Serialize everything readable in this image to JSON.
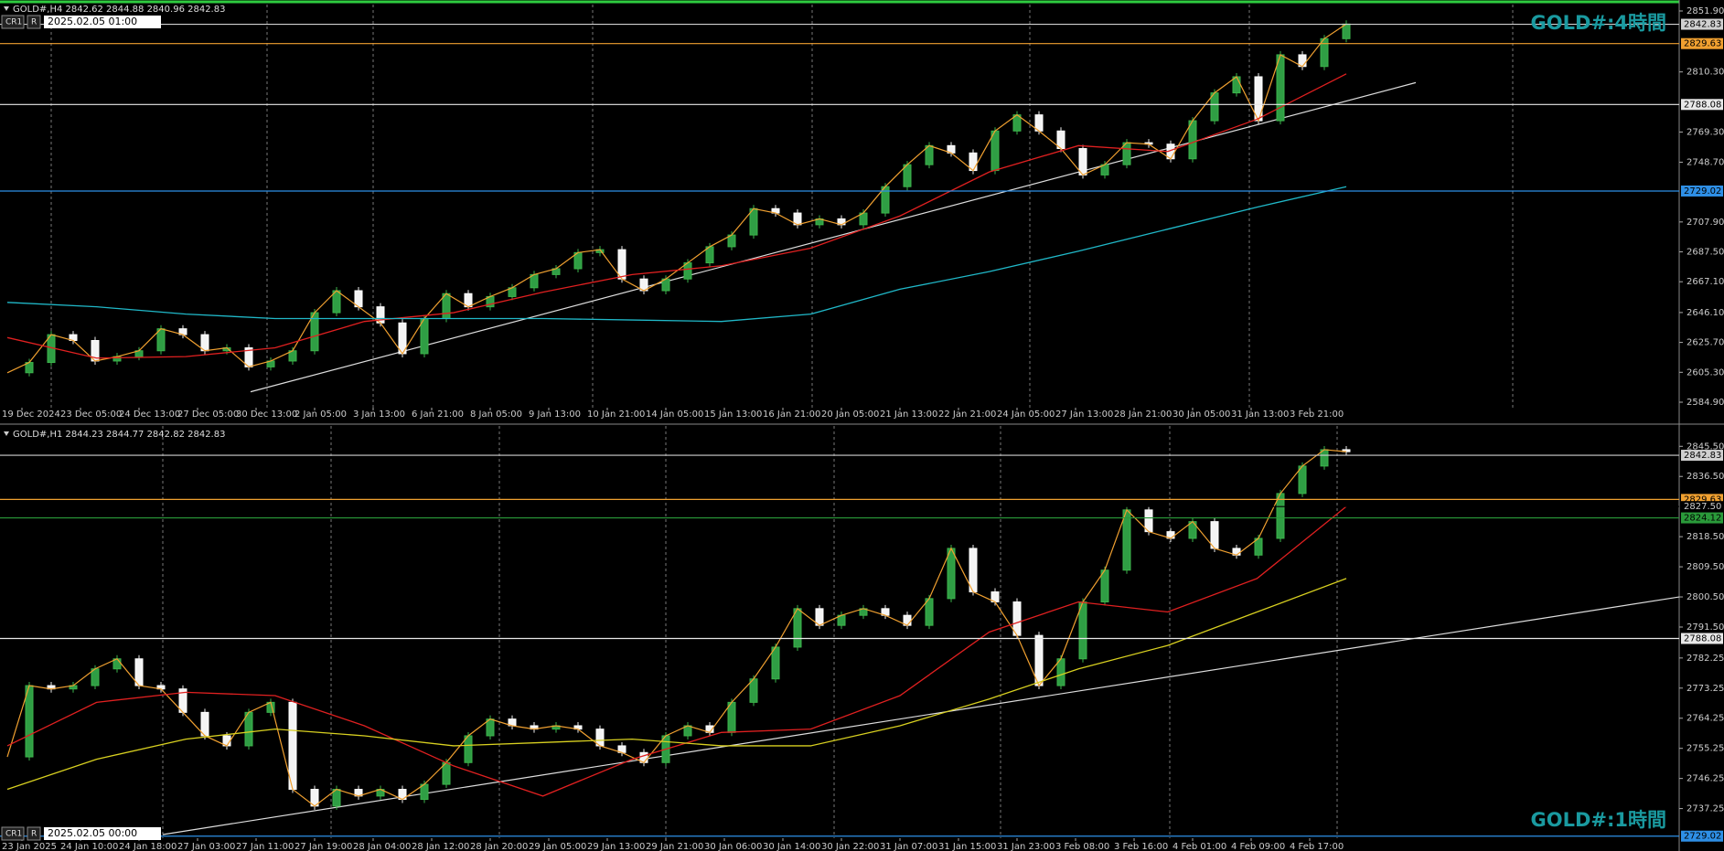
{
  "panels": [
    {
      "header": "GOLD#,H4  2842.62 2844.88 2840.96 2842.83",
      "cr": "CR1",
      "r": "R",
      "date": "2025.02.05 01:00",
      "label": "GOLD#:4時間",
      "ylim": [
        2584.9,
        2851.9
      ],
      "yticks": [
        {
          "value": 2851.9,
          "label": "2851.90"
        },
        {
          "value": 2810.3,
          "label": "2810.30"
        },
        {
          "value": 2769.3,
          "label": "2769.30"
        },
        {
          "value": 2748.7,
          "label": "2748.70"
        },
        {
          "value": 2707.9,
          "label": "2707.90"
        },
        {
          "value": 2687.5,
          "label": "2687.50"
        },
        {
          "value": 2667.1,
          "label": "2667.10"
        },
        {
          "value": 2646.1,
          "label": "2646.10"
        },
        {
          "value": 2625.7,
          "label": "2625.70"
        },
        {
          "value": 2605.3,
          "label": "2605.30"
        },
        {
          "value": 2584.9,
          "label": "2584.90"
        }
      ],
      "levels": [
        {
          "value": 2842.83,
          "label": "2842.83",
          "color": "#d0d0d0"
        },
        {
          "value": 2829.63,
          "label": "2829.63",
          "color": "#f0a030"
        },
        {
          "value": 2788.08,
          "label": "2788.08",
          "color": "#e8e8e8"
        },
        {
          "value": 2729.02,
          "label": "2729.02",
          "color": "#2e8fe6"
        }
      ],
      "xlabels": [
        "19 Dec 2024",
        "23 Dec 05:00",
        "24 Dec 13:00",
        "27 Dec 05:00",
        "30 Dec 13:00",
        "2 Jan 05:00",
        "3 Jan 13:00",
        "6 Jan 21:00",
        "8 Jan 05:00",
        "9 Jan 13:00",
        "10 Jan 21:00",
        "14 Jan 05:00",
        "15 Jan 13:00",
        "16 Jan 21:00",
        "20 Jan 05:00",
        "21 Jan 13:00",
        "22 Jan 21:00",
        "24 Jan 05:00",
        "27 Jan 13:00",
        "28 Jan 21:00",
        "30 Jan 05:00",
        "31 Jan 13:00",
        "3 Feb 21:00"
      ],
      "closes": [
        2605,
        2612,
        2631,
        2627,
        2613,
        2616,
        2620,
        2635,
        2631,
        2620,
        2622,
        2609,
        2613,
        2620,
        2646,
        2661,
        2650,
        2639,
        2618,
        2642,
        2659,
        2650,
        2657,
        2663,
        2672,
        2676,
        2687,
        2689,
        2669,
        2661,
        2669,
        2680,
        2691,
        2699,
        2717,
        2714,
        2706,
        2710,
        2706,
        2714,
        2732,
        2747,
        2760,
        2755,
        2743,
        2770,
        2781,
        2770,
        2758,
        2740,
        2747,
        2762,
        2761,
        2751,
        2777,
        2796,
        2807,
        2777,
        2822,
        2814,
        2833,
        2843
      ],
      "mas": [
        {
          "color": "#e02020",
          "values": [
            2629,
            2615,
            2616,
            2622,
            2640,
            2646,
            2660,
            2672,
            2678,
            2690,
            2712,
            2742,
            2760,
            2756,
            2778,
            2809
          ]
        },
        {
          "color": "#20b8c8",
          "values": [
            2653,
            2650,
            2645,
            2642,
            2642,
            2642,
            2642,
            2641,
            2640,
            2645,
            2662,
            2674,
            2688,
            2703,
            2718,
            2732
          ]
        }
      ],
      "trendline": [
        2592,
        2803
      ]
    },
    {
      "header": "GOLD#,H1  2844.23 2844.77 2842.82 2842.83",
      "cr": "CR1",
      "r": "R",
      "date": "2025.02.05 00:00",
      "label": "GOLD#:1時間",
      "ylim": [
        2728.4,
        2849.4
      ],
      "yticks": [
        {
          "value": 2845.5,
          "label": "2845.50"
        },
        {
          "value": 2836.5,
          "label": "2836.50"
        },
        {
          "value": 2818.5,
          "label": "2818.50"
        },
        {
          "value": 2809.5,
          "label": "2809.50"
        },
        {
          "value": 2800.5,
          "label": "2800.50"
        },
        {
          "value": 2791.5,
          "label": "2791.50"
        },
        {
          "value": 2782.25,
          "label": "2782.25"
        },
        {
          "value": 2773.25,
          "label": "2773.25"
        },
        {
          "value": 2764.25,
          "label": "2764.25"
        },
        {
          "value": 2755.25,
          "label": "2755.25"
        },
        {
          "value": 2746.25,
          "label": "2746.25"
        },
        {
          "value": 2737.25,
          "label": "2737.25"
        }
      ],
      "levels": [
        {
          "value": 2842.83,
          "label": "2842.83",
          "color": "#d0d0d0"
        },
        {
          "value": 2829.63,
          "label": "2829.63",
          "color": "#f0a030"
        },
        {
          "value": 2827.5,
          "label": "2827.50",
          "color": "#000000"
        },
        {
          "value": 2824.12,
          "label": "2824.12",
          "color": "#2a9a3a"
        },
        {
          "value": 2788.08,
          "label": "2788.08",
          "color": "#e8e8e8"
        },
        {
          "value": 2729.02,
          "label": "2729.02",
          "color": "#2e8fe6"
        }
      ],
      "xlabels": [
        "23 Jan 2025",
        "24 Jan 10:00",
        "24 Jan 18:00",
        "27 Jan 03:00",
        "27 Jan 11:00",
        "27 Jan 19:00",
        "28 Jan 04:00",
        "28 Jan 12:00",
        "28 Jan 20:00",
        "29 Jan 05:00",
        "29 Jan 13:00",
        "29 Jan 21:00",
        "30 Jan 06:00",
        "30 Jan 14:00",
        "30 Jan 22:00",
        "31 Jan 07:00",
        "31 Jan 15:00",
        "31 Jan 23:00",
        "3 Feb 08:00",
        "3 Feb 16:00",
        "4 Feb 01:00",
        "4 Feb 09:00",
        "4 Feb 17:00"
      ],
      "closes": [
        2752.7,
        2774,
        2773,
        2774,
        2779,
        2782,
        2774,
        2773,
        2766,
        2759,
        2756,
        2766,
        2769,
        2743,
        2738,
        2743,
        2741,
        2743,
        2740,
        2744.5,
        2751,
        2759,
        2764,
        2762,
        2761,
        2762,
        2761,
        2756,
        2754,
        2751,
        2759,
        2762,
        2760,
        2769,
        2776,
        2785.5,
        2797,
        2792,
        2795,
        2797,
        2795,
        2792,
        2800,
        2815,
        2802,
        2799,
        2789,
        2774,
        2782,
        2799,
        2808.5,
        2826.5,
        2820,
        2818,
        2823,
        2815,
        2813,
        2818,
        2831.4,
        2839.6,
        2844.5,
        2843.9
      ],
      "mas": [
        {
          "color": "#e02020",
          "values": [
            2756,
            2769,
            2772,
            2771,
            2762,
            2750,
            2741,
            2752,
            2760,
            2761,
            2771,
            2790,
            2799,
            2796,
            2806,
            2827.5
          ]
        },
        {
          "color": "#d8d020",
          "values": [
            2743,
            2752,
            2758,
            2761,
            2759,
            2756,
            2757,
            2758,
            2756,
            2756,
            2762,
            2770,
            2779,
            2786,
            2796,
            2806
          ]
        }
      ],
      "trendline": [
        2729.5,
        2800.5
      ]
    }
  ]
}
